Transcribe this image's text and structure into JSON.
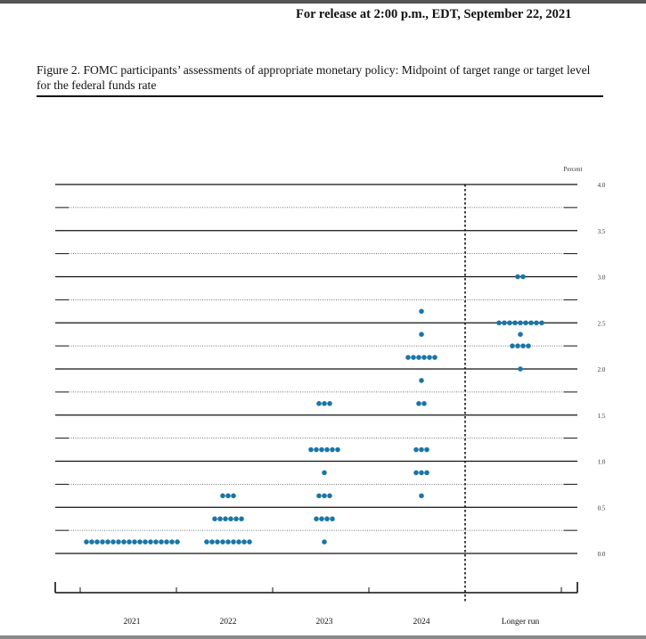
{
  "header": {
    "release_line": "For release at 2:00 p.m., EDT, September 22, 2021"
  },
  "figure": {
    "caption": "Figure 2.  FOMC participants’ assessments of appropriate monetary policy: Midpoint of target range or target level for the federal funds rate"
  },
  "colors": {
    "dot": "#1a75a8",
    "axis": "#111111"
  },
  "chart_data": {
    "type": "scatter",
    "title": "",
    "xlabel": "",
    "ylabel": "Percent",
    "ylim": [
      0,
      4.0
    ],
    "ytick_labels": [
      "0.0",
      "0.5",
      "1.0",
      "1.5",
      "2.0",
      "2.5",
      "3.0",
      "3.5",
      "4.0"
    ],
    "minor_grid_step": 0.25,
    "categories": [
      "2021",
      "2022",
      "2023",
      "2024",
      "Longer run"
    ],
    "separator_after_category": "2024",
    "dots": [
      {
        "category": "2021",
        "points": [
          {
            "rate": 0.125,
            "count": 18
          }
        ]
      },
      {
        "category": "2022",
        "points": [
          {
            "rate": 0.125,
            "count": 9
          },
          {
            "rate": 0.375,
            "count": 6
          },
          {
            "rate": 0.625,
            "count": 3
          }
        ]
      },
      {
        "category": "2023",
        "points": [
          {
            "rate": 0.125,
            "count": 1
          },
          {
            "rate": 0.375,
            "count": 4
          },
          {
            "rate": 0.625,
            "count": 3
          },
          {
            "rate": 0.875,
            "count": 1
          },
          {
            "rate": 1.125,
            "count": 6
          },
          {
            "rate": 1.625,
            "count": 3
          }
        ]
      },
      {
        "category": "2024",
        "points": [
          {
            "rate": 0.625,
            "count": 1
          },
          {
            "rate": 0.875,
            "count": 3
          },
          {
            "rate": 1.125,
            "count": 3
          },
          {
            "rate": 1.625,
            "count": 2
          },
          {
            "rate": 1.875,
            "count": 1
          },
          {
            "rate": 2.125,
            "count": 6
          },
          {
            "rate": 2.375,
            "count": 1
          },
          {
            "rate": 2.625,
            "count": 1
          }
        ]
      },
      {
        "category": "Longer run",
        "points": [
          {
            "rate": 2.0,
            "count": 1
          },
          {
            "rate": 2.25,
            "count": 4
          },
          {
            "rate": 2.375,
            "count": 1
          },
          {
            "rate": 2.5,
            "count": 9
          },
          {
            "rate": 3.0,
            "count": 2
          }
        ]
      }
    ]
  }
}
